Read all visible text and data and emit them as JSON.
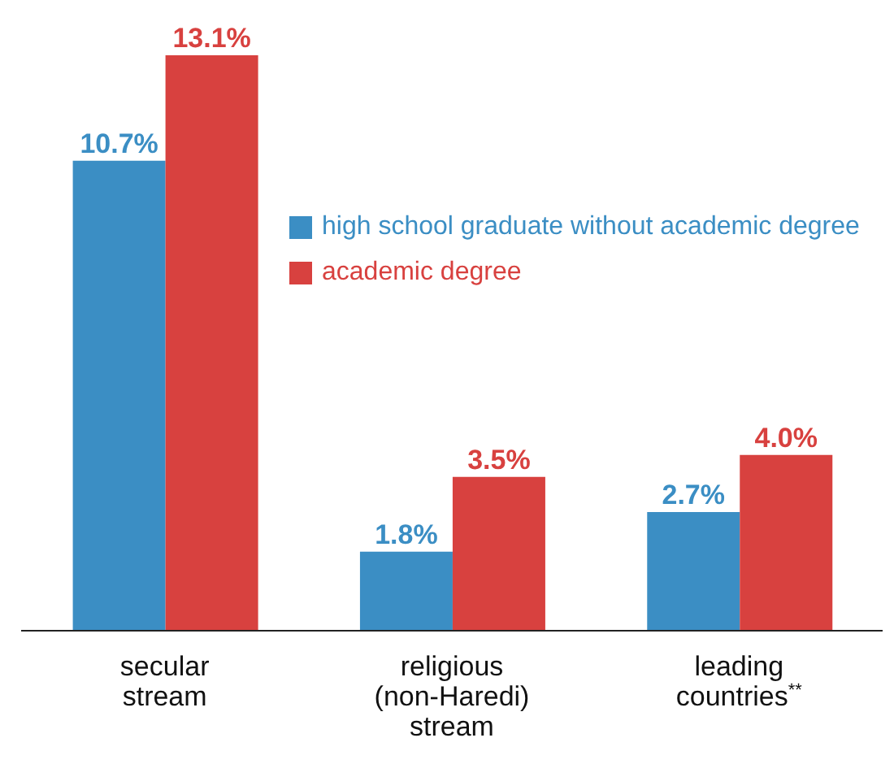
{
  "chart_data": {
    "type": "bar",
    "categories": [
      "secular stream",
      "religious (non-Haredi) stream",
      "leading countries$^{**}$"
    ],
    "series": [
      {
        "name": "high school graduate without academic degree",
        "color": "#3b8ec4",
        "values": [
          10.7,
          1.8,
          2.7
        ],
        "value_labels": [
          "10.7%",
          "1.8%",
          "2.7%"
        ]
      },
      {
        "name": "academic degree",
        "color": "#d8413f",
        "values": [
          13.1,
          3.5,
          4.0
        ],
        "value_labels": [
          "13.1%",
          "3.5%",
          "4.0%"
        ]
      }
    ],
    "legend": "right",
    "grid": false
  }
}
